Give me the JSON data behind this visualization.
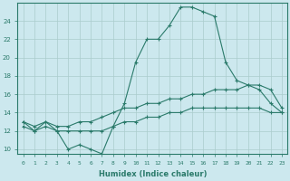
{
  "xlabel": "Humidex (Indice chaleur)",
  "bg_color": "#cce8ee",
  "grid_color": "#aacccc",
  "line_color": "#2a7a6a",
  "xlim": [
    -0.5,
    23.5
  ],
  "ylim": [
    9.5,
    26
  ],
  "yticks": [
    10,
    12,
    14,
    16,
    18,
    20,
    22,
    24
  ],
  "xticks": [
    0,
    1,
    2,
    3,
    4,
    5,
    6,
    7,
    8,
    9,
    10,
    11,
    12,
    13,
    14,
    15,
    16,
    17,
    18,
    19,
    20,
    21,
    22,
    23
  ],
  "line1_x": [
    0,
    1,
    2,
    3,
    4,
    5,
    6,
    7,
    8,
    9,
    10,
    11,
    12,
    13,
    14,
    15,
    16,
    17,
    18,
    19,
    20,
    21,
    22,
    23
  ],
  "line1_y": [
    13,
    12,
    13,
    12,
    10,
    10.5,
    10,
    9.5,
    12.5,
    15,
    19.5,
    22,
    22,
    23.5,
    25.5,
    25.5,
    25,
    24.5,
    19.5,
    17.5,
    17,
    16.5,
    15,
    14
  ],
  "line2_x": [
    0,
    1,
    2,
    3,
    4,
    5,
    6,
    7,
    8,
    9,
    10,
    11,
    12,
    13,
    14,
    15,
    16,
    17,
    18,
    19,
    20,
    21,
    22,
    23
  ],
  "line2_y": [
    13,
    12.5,
    13,
    12.5,
    12.5,
    13,
    13,
    13.5,
    14,
    14.5,
    14.5,
    15,
    15,
    15.5,
    15.5,
    16,
    16,
    16.5,
    16.5,
    16.5,
    17,
    17,
    16.5,
    14.5
  ],
  "line3_x": [
    0,
    1,
    2,
    3,
    4,
    5,
    6,
    7,
    8,
    9,
    10,
    11,
    12,
    13,
    14,
    15,
    16,
    17,
    18,
    19,
    20,
    21,
    22,
    23
  ],
  "line3_y": [
    12.5,
    12,
    12.5,
    12,
    12,
    12,
    12,
    12,
    12.5,
    13,
    13,
    13.5,
    13.5,
    14,
    14,
    14.5,
    14.5,
    14.5,
    14.5,
    14.5,
    14.5,
    14.5,
    14,
    14
  ]
}
